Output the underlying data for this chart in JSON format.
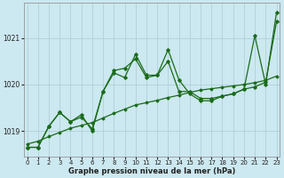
{
  "x": [
    0,
    1,
    2,
    3,
    4,
    5,
    6,
    7,
    8,
    9,
    10,
    11,
    12,
    13,
    14,
    15,
    16,
    17,
    18,
    19,
    20,
    21,
    22,
    23
  ],
  "line_jagged": [
    1018.65,
    1018.65,
    1019.1,
    1019.4,
    1019.2,
    1019.35,
    1019.0,
    1019.85,
    1020.25,
    1020.15,
    1020.65,
    1020.2,
    1020.2,
    1020.75,
    1020.1,
    1019.8,
    1019.65,
    1019.65,
    1019.75,
    1019.8,
    1019.9,
    1021.05,
    1020.0,
    1021.55
  ],
  "line_smooth": [
    1018.65,
    1018.65,
    1019.1,
    1019.4,
    1019.2,
    1019.3,
    1019.05,
    1019.85,
    1020.3,
    1020.35,
    1020.55,
    1020.15,
    1020.2,
    1020.5,
    1019.85,
    1019.85,
    1019.7,
    1019.7,
    1019.75,
    1019.8,
    1019.9,
    1019.95,
    1020.05,
    1021.35
  ],
  "line_trend": [
    1018.72,
    1018.78,
    1018.88,
    1018.97,
    1019.06,
    1019.12,
    1019.18,
    1019.28,
    1019.38,
    1019.47,
    1019.56,
    1019.61,
    1019.66,
    1019.72,
    1019.77,
    1019.83,
    1019.88,
    1019.91,
    1019.94,
    1019.97,
    1020.0,
    1020.04,
    1020.09,
    1020.18
  ],
  "bg_color": "#cce8f0",
  "line_color": "#1a6b1a",
  "grid_color": "#aaccd4",
  "text_color": "#222222",
  "ylabel_values": [
    1019,
    1020,
    1021
  ],
  "xlabel_label": "Graphe pression niveau de la mer (hPa)",
  "ylim": [
    1018.45,
    1021.75
  ],
  "xlim": [
    -0.3,
    23.3
  ]
}
